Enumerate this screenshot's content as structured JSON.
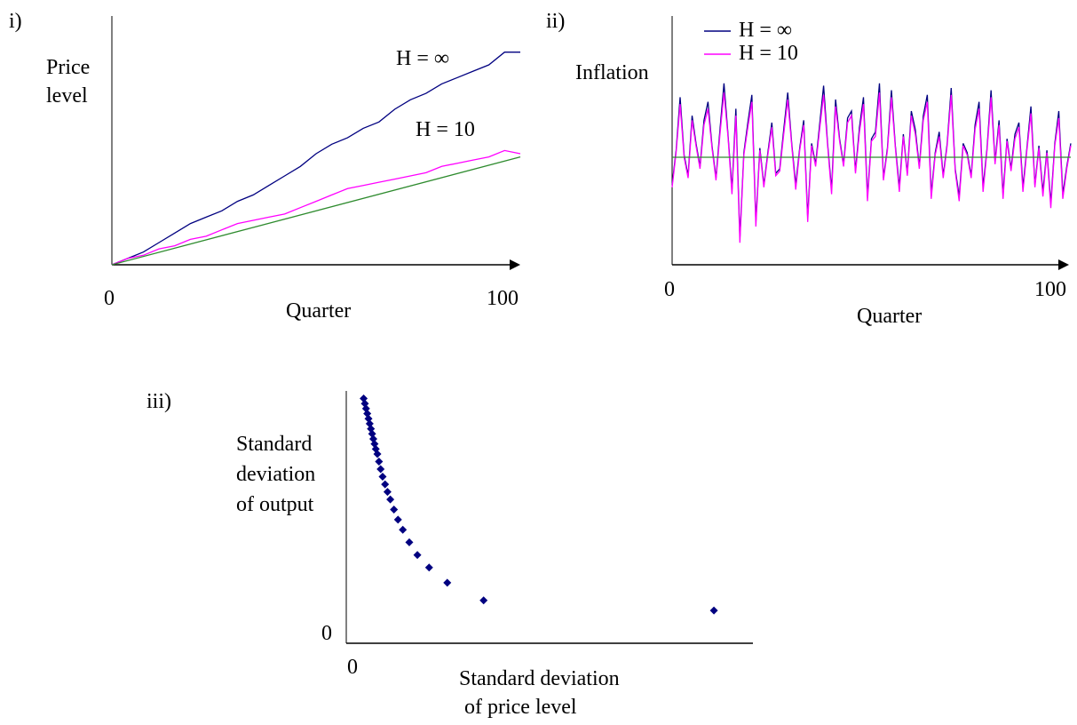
{
  "colors": {
    "h_inf": "#000080",
    "h_10": "#ff00ff",
    "baseline": "#2e8b2e",
    "marker": "#000080",
    "axis": "#000000"
  },
  "chart_data": [
    {
      "panel": "i)",
      "type": "line",
      "ylabel_lines": [
        "Price",
        "level"
      ],
      "xlabel": "Quarter",
      "x_ticks": [
        "0",
        "100"
      ],
      "xlim": [
        0,
        104
      ],
      "ylim": [
        0,
        70
      ],
      "series": [
        {
          "name": "H = ∞",
          "color_key": "h_inf",
          "points": [
            [
              0,
              0
            ],
            [
              4,
              2
            ],
            [
              8,
              4
            ],
            [
              12,
              7
            ],
            [
              16,
              10
            ],
            [
              20,
              13
            ],
            [
              24,
              15
            ],
            [
              28,
              17
            ],
            [
              32,
              20
            ],
            [
              36,
              22
            ],
            [
              40,
              25
            ],
            [
              44,
              28
            ],
            [
              48,
              31
            ],
            [
              52,
              35
            ],
            [
              56,
              38
            ],
            [
              60,
              40
            ],
            [
              64,
              43
            ],
            [
              68,
              45
            ],
            [
              72,
              49
            ],
            [
              76,
              52
            ],
            [
              80,
              54
            ],
            [
              84,
              57
            ],
            [
              88,
              59
            ],
            [
              92,
              61
            ],
            [
              96,
              63
            ],
            [
              100,
              67
            ],
            [
              104,
              67
            ]
          ]
        },
        {
          "name": "H = 10",
          "color_key": "h_10",
          "points": [
            [
              0,
              0
            ],
            [
              4,
              2
            ],
            [
              8,
              3
            ],
            [
              12,
              5
            ],
            [
              16,
              6
            ],
            [
              20,
              8
            ],
            [
              24,
              9
            ],
            [
              28,
              11
            ],
            [
              32,
              13
            ],
            [
              36,
              14
            ],
            [
              40,
              15
            ],
            [
              44,
              16
            ],
            [
              48,
              18
            ],
            [
              52,
              20
            ],
            [
              56,
              22
            ],
            [
              60,
              24
            ],
            [
              64,
              25
            ],
            [
              68,
              26
            ],
            [
              72,
              27
            ],
            [
              76,
              28
            ],
            [
              80,
              29
            ],
            [
              84,
              31
            ],
            [
              88,
              32
            ],
            [
              92,
              33
            ],
            [
              96,
              34
            ],
            [
              100,
              36
            ],
            [
              104,
              35
            ]
          ]
        },
        {
          "name": "",
          "color_key": "baseline",
          "points": [
            [
              0,
              0
            ],
            [
              104,
              34
            ]
          ]
        }
      ],
      "annotations": [
        {
          "text": "H = ∞",
          "x": 76,
          "y": 56
        },
        {
          "text": "H = 10",
          "x": 82,
          "y": 36
        }
      ]
    },
    {
      "panel": "ii)",
      "type": "line",
      "ylabel": "Inflation",
      "xlabel": "Quarter",
      "x_ticks": [
        "0",
        "100"
      ],
      "xlim": [
        0,
        100
      ],
      "ylim": [
        -5,
        5
      ],
      "legend": [
        "H = ∞",
        "H = 10"
      ],
      "legend_position": "top-left",
      "series": [
        {
          "name": "H = ∞",
          "color_key": "h_inf",
          "values": [
            -1.2,
            0.3,
            2.6,
            0.1,
            -0.8,
            1.8,
            0.6,
            -0.4,
            1.6,
            2.4,
            0.5,
            -0.9,
            1.2,
            3.2,
            1.0,
            -1.4,
            2.1,
            -3.5,
            0.2,
            1.5,
            2.7,
            -2.8,
            0.4,
            -1.2,
            0.2,
            1.5,
            -0.7,
            -0.5,
            1.2,
            2.8,
            0.6,
            -1.2,
            0.4,
            1.6,
            -2.6,
            0.6,
            -0.3,
            1.4,
            3.1,
            0.6,
            -1.4,
            2.5,
            0.8,
            -0.3,
            1.7,
            2.0,
            -0.6,
            1.3,
            2.6,
            -1.7,
            0.8,
            1.1,
            3.2,
            -0.9,
            0.4,
            2.9,
            0.5,
            -1.3,
            1.0,
            -0.7,
            2.0,
            1.2,
            -0.4,
            1.8,
            2.7,
            -1.6,
            0.2,
            1.1,
            -0.8,
            0.6,
            3.0,
            -0.5,
            -1.7,
            0.6,
            0.2,
            -0.8,
            1.4,
            2.4,
            -1.3,
            0.4,
            2.9,
            -0.2,
            1.6,
            -1.6,
            0.8,
            -0.5,
            1.0,
            1.5,
            -1.3,
            0.4,
            2.2,
            -1.2,
            0.5,
            -1.5,
            0.3,
            -2.0,
            0.6,
            2.0,
            -1.6,
            -0.4,
            0.6
          ]
        },
        {
          "name": "H = 10",
          "color_key": "h_10",
          "values": [
            -1.3,
            0.2,
            2.3,
            0.0,
            -0.9,
            1.6,
            0.5,
            -0.5,
            1.4,
            2.1,
            0.4,
            -1.0,
            1.0,
            2.8,
            0.9,
            -1.6,
            1.8,
            -3.7,
            0.1,
            1.3,
            2.4,
            -3.0,
            0.3,
            -1.3,
            0.1,
            1.3,
            -0.8,
            -0.6,
            1.0,
            2.5,
            0.5,
            -1.4,
            0.3,
            1.4,
            -2.8,
            0.5,
            -0.4,
            1.2,
            2.7,
            0.5,
            -1.6,
            2.2,
            0.7,
            -0.4,
            1.5,
            1.8,
            -0.7,
            1.1,
            2.3,
            -1.9,
            0.7,
            0.9,
            2.8,
            -1.0,
            0.3,
            2.6,
            0.4,
            -1.5,
            0.9,
            -0.8,
            1.8,
            1.0,
            -0.5,
            1.6,
            2.4,
            -1.8,
            0.1,
            0.9,
            -0.9,
            0.5,
            2.7,
            -0.6,
            -1.9,
            0.5,
            0.1,
            -0.9,
            1.2,
            2.1,
            -1.5,
            0.3,
            2.6,
            -0.3,
            1.4,
            -1.8,
            0.7,
            -0.6,
            0.8,
            1.3,
            -1.5,
            0.3,
            1.9,
            -1.3,
            0.4,
            -1.7,
            0.2,
            -2.2,
            0.5,
            1.7,
            -1.8,
            -0.5,
            0.5
          ]
        },
        {
          "name": "",
          "color_key": "baseline",
          "values_const": 0
        }
      ]
    },
    {
      "panel": "iii)",
      "type": "scatter",
      "ylabel_lines": [
        "Standard",
        "deviation",
        "of output"
      ],
      "xlabel_lines": [
        "Standard deviation",
        " of price level"
      ],
      "x_ticks": [
        "0"
      ],
      "y_ticks": [
        "0"
      ],
      "xlim": [
        0,
        100
      ],
      "ylim": [
        0,
        100
      ],
      "points": [
        [
          4.3,
          97
        ],
        [
          4.6,
          95
        ],
        [
          4.9,
          93
        ],
        [
          5.2,
          91
        ],
        [
          5.5,
          89
        ],
        [
          5.8,
          87
        ],
        [
          6.1,
          85
        ],
        [
          6.4,
          83
        ],
        [
          6.7,
          81
        ],
        [
          7.0,
          79
        ],
        [
          7.3,
          77
        ],
        [
          7.7,
          75
        ],
        [
          8.1,
          72
        ],
        [
          8.5,
          69
        ],
        [
          9.0,
          66
        ],
        [
          9.6,
          63
        ],
        [
          10.2,
          60
        ],
        [
          10.9,
          57
        ],
        [
          11.8,
          53
        ],
        [
          12.8,
          49
        ],
        [
          14.0,
          45
        ],
        [
          15.6,
          40
        ],
        [
          17.6,
          35
        ],
        [
          20.5,
          30
        ],
        [
          25.0,
          24
        ],
        [
          34.0,
          17
        ],
        [
          91.0,
          13
        ]
      ]
    }
  ]
}
